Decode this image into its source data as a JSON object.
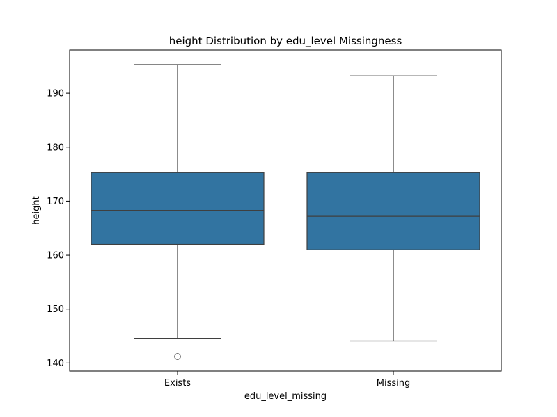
{
  "chart_data": {
    "type": "box",
    "title": "height Distribution by edu_level Missingness",
    "xlabel": "edu_level_missing",
    "ylabel": "height",
    "ylim": [
      138.5,
      198
    ],
    "yticks": [
      140,
      150,
      160,
      170,
      180,
      190
    ],
    "grid": false,
    "legend": "none",
    "box_color": "#3274a1",
    "line_color": "#3f3f3f",
    "categories": [
      "Exists",
      "Missing"
    ],
    "boxes": [
      {
        "category": "Exists",
        "whisker_low": 144.5,
        "q1": 162.0,
        "median": 168.3,
        "q3": 175.3,
        "whisker_high": 195.3,
        "outliers": [
          141.2
        ]
      },
      {
        "category": "Missing",
        "whisker_low": 144.1,
        "q1": 161.0,
        "median": 167.2,
        "q3": 175.3,
        "whisker_high": 193.2,
        "outliers": []
      }
    ]
  }
}
